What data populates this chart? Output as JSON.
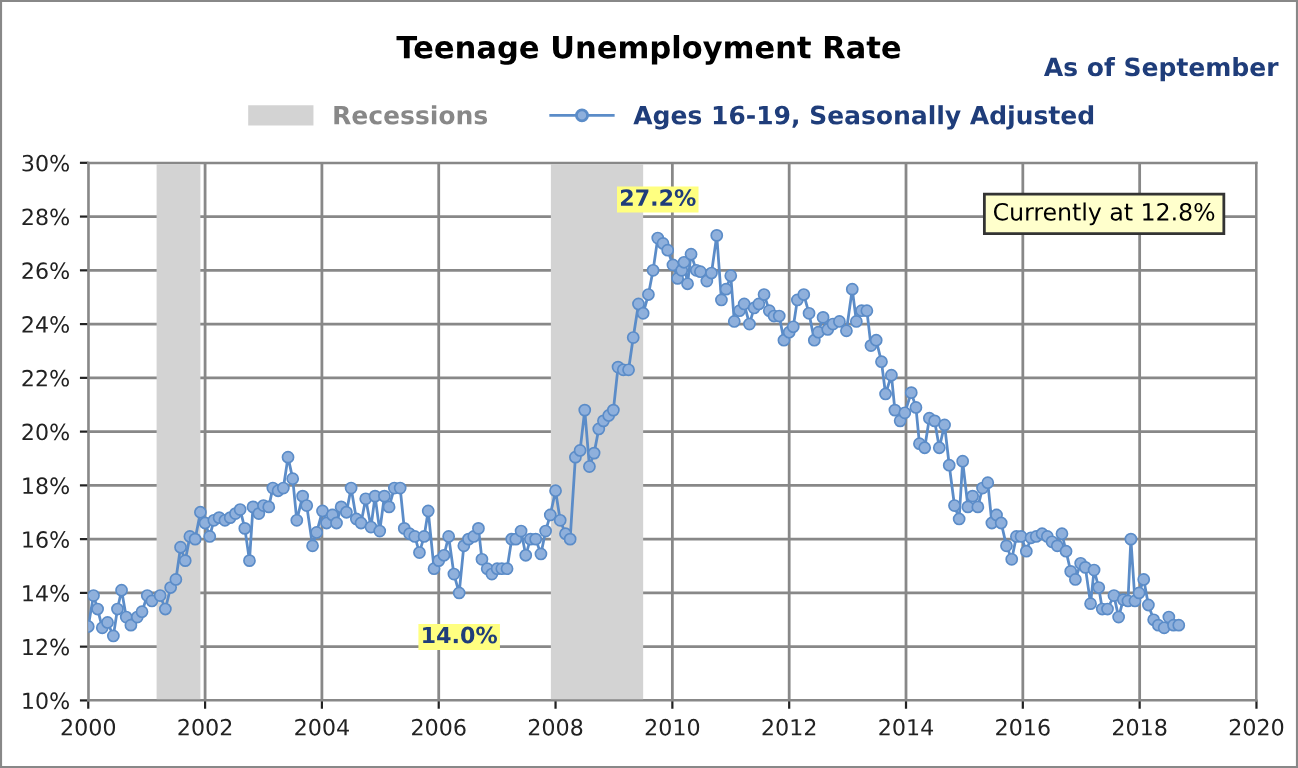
{
  "chart_data": {
    "type": "line",
    "title": "Teenage Unemployment Rate",
    "annotations": [
      "As of September",
      "Currently at 12.8%",
      {
        "text": "27.2%",
        "x": 2009.75,
        "y": 27.2
      },
      {
        "text": "14.0%",
        "x": 2006.35,
        "y": 14.0
      }
    ],
    "xlim": [
      2000,
      2020
    ],
    "xticks": [
      2000,
      2002,
      2004,
      2006,
      2008,
      2010,
      2012,
      2014,
      2016,
      2018,
      2020
    ],
    "ylim": [
      10,
      30
    ],
    "yticks": [
      {
        "value": 10,
        "label": "10%"
      },
      {
        "value": 12,
        "label": "12%"
      },
      {
        "value": 14,
        "label": "14%"
      },
      {
        "value": 16,
        "label": "16%"
      },
      {
        "value": 18,
        "label": "18%"
      },
      {
        "value": 20,
        "label": "20%"
      },
      {
        "value": 22,
        "label": "22%"
      },
      {
        "value": 24,
        "label": "24%"
      },
      {
        "value": 26,
        "label": "26%"
      },
      {
        "value": 28,
        "label": "28%"
      },
      {
        "value": 30,
        "label": "30%"
      }
    ],
    "grid": true,
    "legend": "top",
    "marker": "circle",
    "line_style": "solid",
    "bands": [
      {
        "axis": "x",
        "from": 2001.17,
        "to": 2001.92,
        "label": "Recessions",
        "color": "#d3d3d3"
      },
      {
        "axis": "x",
        "from": 2007.92,
        "to": 2009.5,
        "label": null,
        "color": "#d3d3d3"
      }
    ],
    "series": [
      {
        "name": "Ages 16-19, Seasonally Adjusted",
        "color": "#5b8cc8",
        "x": [
          2000.0,
          2000.09,
          2000.16,
          2000.24,
          2000.33,
          2000.43,
          2000.5,
          2000.57,
          2000.65,
          2000.73,
          2000.84,
          2000.92,
          2001.01,
          2001.09,
          2001.23,
          2001.32,
          2001.41,
          2001.5,
          2001.58,
          2001.66,
          2001.74,
          2001.83,
          2001.92,
          2002.0,
          2002.08,
          2002.15,
          2002.24,
          2002.34,
          2002.43,
          2002.52,
          2002.6,
          2002.68,
          2002.76,
          2002.82,
          2002.92,
          2003.0,
          2003.09,
          2003.16,
          2003.25,
          2003.34,
          2003.42,
          2003.5,
          2003.57,
          2003.67,
          2003.74,
          2003.84,
          2003.91,
          2004.01,
          2004.08,
          2004.18,
          2004.25,
          2004.33,
          2004.42,
          2004.5,
          2004.59,
          2004.67,
          2004.75,
          2004.84,
          2004.91,
          2004.99,
          2005.07,
          2005.15,
          2005.24,
          2005.34,
          2005.41,
          2005.5,
          2005.59,
          2005.67,
          2005.75,
          2005.82,
          2005.92,
          2006.0,
          2006.09,
          2006.17,
          2006.26,
          2006.35,
          2006.43,
          2006.51,
          2006.6,
          2006.68,
          2006.74,
          2006.83,
          2006.91,
          2007.0,
          2007.08,
          2007.17,
          2007.25,
          2007.32,
          2007.41,
          2007.49,
          2007.57,
          2007.66,
          2007.75,
          2007.83,
          2007.91,
          2008.0,
          2008.08,
          2008.17,
          2008.25,
          2008.34,
          2008.42,
          2008.5,
          2008.58,
          2008.66,
          2008.74,
          2008.82,
          2008.91,
          2008.99,
          2009.07,
          2009.16,
          2009.25,
          2009.33,
          2009.42,
          2009.5,
          2009.59,
          2009.67,
          2009.75,
          2009.84,
          2009.92,
          2010.01,
          2010.09,
          2010.16,
          2010.2,
          2010.26,
          2010.32,
          2010.41,
          2010.48,
          2010.59,
          2010.67,
          2010.76,
          2010.84,
          2010.92,
          2011.0,
          2011.06,
          2011.15,
          2011.23,
          2011.32,
          2011.4,
          2011.48,
          2011.57,
          2011.66,
          2011.74,
          2011.83,
          2011.91,
          2012.0,
          2012.07,
          2012.14,
          2012.25,
          2012.34,
          2012.43,
          2012.5,
          2012.58,
          2012.66,
          2012.75,
          2012.86,
          2012.98,
          2013.08,
          2013.15,
          2013.24,
          2013.33,
          2013.4,
          2013.49,
          2013.58,
          2013.65,
          2013.75,
          2013.81,
          2013.9,
          2013.98,
          2014.09,
          2014.17,
          2014.23,
          2014.32,
          2014.4,
          2014.49,
          2014.57,
          2014.66,
          2014.74,
          2014.83,
          2014.91,
          2014.97,
          2015.06,
          2015.14,
          2015.23,
          2015.31,
          2015.4,
          2015.47,
          2015.55,
          2015.63,
          2015.72,
          2015.81,
          2015.89,
          2015.97,
          2016.06,
          2016.14,
          2016.23,
          2016.33,
          2016.42,
          2016.5,
          2016.59,
          2016.67,
          2016.74,
          2016.82,
          2016.9,
          2016.99,
          2017.07,
          2017.16,
          2017.22,
          2017.3,
          2017.36,
          2017.45,
          2017.56,
          2017.64,
          2017.72,
          2017.8,
          2017.85,
          2017.92,
          2017.99,
          2018.07,
          2018.15,
          2018.24,
          2018.32,
          2018.42,
          2018.5,
          2018.58,
          2018.67
        ],
        "values": [
          12.75,
          13.9,
          13.4,
          12.7,
          12.9,
          12.4,
          13.4,
          14.1,
          13.1,
          12.8,
          13.1,
          13.3,
          13.9,
          13.7,
          13.9,
          13.4,
          14.2,
          14.5,
          15.7,
          15.2,
          16.1,
          16.0,
          17.0,
          16.6,
          16.1,
          16.7,
          16.8,
          16.7,
          16.8,
          16.95,
          17.1,
          16.4,
          15.2,
          17.2,
          16.95,
          17.25,
          17.2,
          17.9,
          17.8,
          17.9,
          19.05,
          18.25,
          16.7,
          17.6,
          17.25,
          15.75,
          16.25,
          17.05,
          16.6,
          16.9,
          16.6,
          17.2,
          17.0,
          17.9,
          16.75,
          16.6,
          17.5,
          16.45,
          17.6,
          16.3,
          17.6,
          17.2,
          17.9,
          17.9,
          16.4,
          16.2,
          16.1,
          15.5,
          16.1,
          17.05,
          14.9,
          15.2,
          15.4,
          16.1,
          14.7,
          14.0,
          15.75,
          16.0,
          16.1,
          16.4,
          15.25,
          14.9,
          14.7,
          14.9,
          14.9,
          14.9,
          16.0,
          16.0,
          16.3,
          15.4,
          16.0,
          16.0,
          15.45,
          16.3,
          16.9,
          17.8,
          16.7,
          16.2,
          16.0,
          19.05,
          19.3,
          20.8,
          18.7,
          19.2,
          20.1,
          20.4,
          20.6,
          20.8,
          22.4,
          22.3,
          22.3,
          23.5,
          24.75,
          24.4,
          25.1,
          26.0,
          27.2,
          27.0,
          26.75,
          26.2,
          25.7,
          26.0,
          26.3,
          25.5,
          26.6,
          26.0,
          25.95,
          25.6,
          25.9,
          27.3,
          24.9,
          25.3,
          25.8,
          24.1,
          24.5,
          24.75,
          24.0,
          24.6,
          24.75,
          25.1,
          24.5,
          24.3,
          24.3,
          23.4,
          23.7,
          23.9,
          24.9,
          25.1,
          24.4,
          23.4,
          23.7,
          24.25,
          23.8,
          24.0,
          24.1,
          23.75,
          25.3,
          24.1,
          24.5,
          24.5,
          23.2,
          23.4,
          22.6,
          21.4,
          22.1,
          20.8,
          20.4,
          20.7,
          21.45,
          20.9,
          19.55,
          19.4,
          20.5,
          20.4,
          19.4,
          20.25,
          18.75,
          17.25,
          16.75,
          18.9,
          17.2,
          17.6,
          17.2,
          17.9,
          18.1,
          16.6,
          16.9,
          16.6,
          15.75,
          15.25,
          16.1,
          16.1,
          15.55,
          16.05,
          16.1,
          16.2,
          16.1,
          15.9,
          15.75,
          16.2,
          15.55,
          14.8,
          14.5,
          15.1,
          14.95,
          13.6,
          14.85,
          14.2,
          13.4,
          13.4,
          13.9,
          13.1,
          13.75,
          13.7,
          16.0,
          13.7,
          14.0,
          14.5,
          13.55,
          13.0,
          12.8,
          12.7,
          13.1,
          12.8,
          12.8
        ]
      }
    ]
  }
}
